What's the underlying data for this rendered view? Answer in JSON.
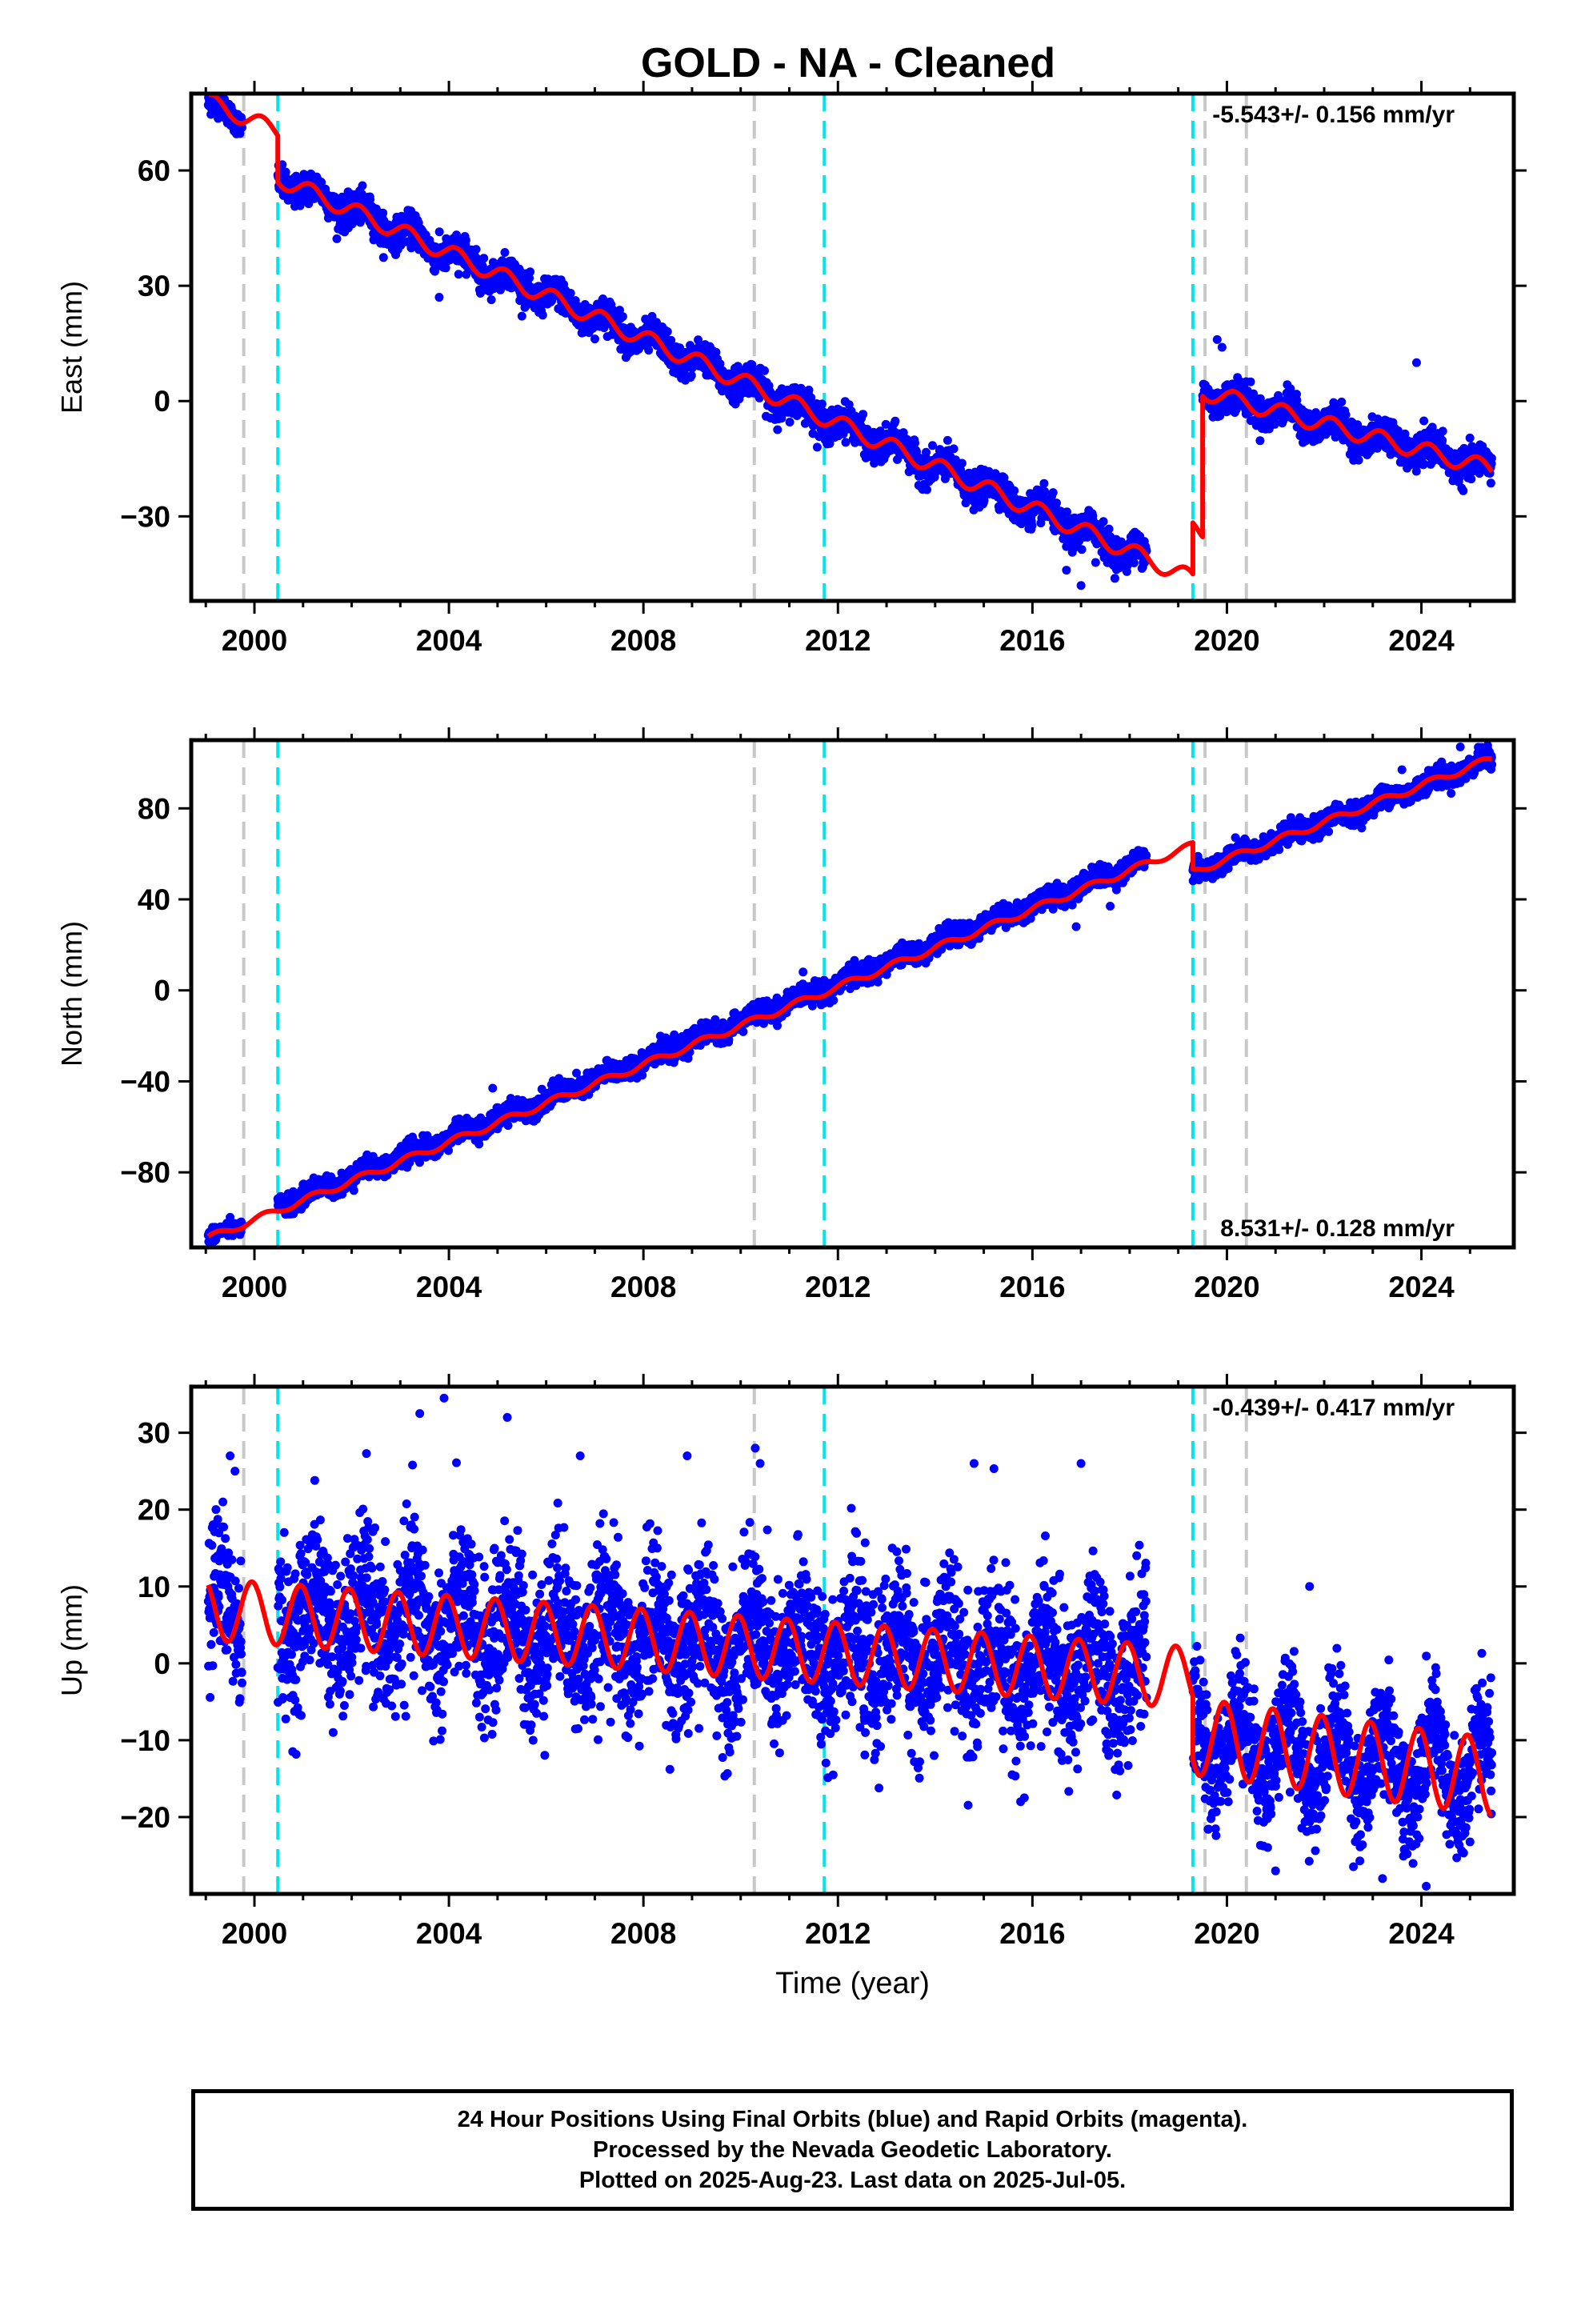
{
  "title": "GOLD  - NA - Cleaned",
  "colors": {
    "data": "#0000ff",
    "model": "#ff0000",
    "break_gray": "#c8c8c8",
    "break_cyan": "#00e5ee",
    "frame": "#000000"
  },
  "chart_data": [
    {
      "type": "scatter",
      "component": "east",
      "ylabel": "East (mm)",
      "xlim": [
        1998.7,
        2025.9
      ],
      "ylim": [
        -52,
        80
      ],
      "xticks": [
        2000,
        2004,
        2008,
        2012,
        2016,
        2020,
        2024
      ],
      "yticks": [
        -30,
        0,
        30,
        60
      ],
      "rate_label": "-5.543+/- 0.156 mm/yr",
      "rate_position": "top-right",
      "grid": false,
      "model": {
        "segments": [
          {
            "from": 1999.05,
            "to": 2000.48,
            "start": 78,
            "slope": -5.543,
            "amplitude": 2.2,
            "phase": 0.6
          },
          {
            "from": 2000.48,
            "to": 2019.3,
            "start": 58,
            "slope": -5.543,
            "amplitude": 2.2,
            "phase": 0.6
          },
          {
            "from": 2019.3,
            "to": 2019.5,
            "start": -33,
            "slope": -5.543,
            "amplitude": 2.2,
            "phase": 0.6
          },
          {
            "from": 2019.5,
            "to": 2025.45,
            "start": 2.5,
            "slope": -3.4,
            "amplitude": 2.2,
            "phase": 0.6
          }
        ]
      },
      "observations": {
        "segments": [
          {
            "from": 1999.05,
            "to": 1999.75,
            "start": 77,
            "slope": -5.543,
            "amplitude": 1.6,
            "noise": 1.5
          },
          {
            "from": 2000.48,
            "to": 2018.35,
            "start": 58,
            "slope": -5.543,
            "amplitude": 2.2,
            "noise": 2.0
          },
          {
            "from": 2019.5,
            "to": 2025.45,
            "start": 2.5,
            "slope": -3.4,
            "amplitude": 2.2,
            "noise": 2.0
          }
        ],
        "outliers": [
          {
            "x": 2019.8,
            "y": 16
          },
          {
            "x": 2019.9,
            "y": 14
          },
          {
            "x": 2023.9,
            "y": 10
          },
          {
            "x": 2017.0,
            "y": -48
          },
          {
            "x": 2016.7,
            "y": -44
          },
          {
            "x": 2003.8,
            "y": 27
          },
          {
            "x": 2004.2,
            "y": 33
          },
          {
            "x": 2017.3,
            "y": -42
          }
        ]
      },
      "breaks_gray": [
        1999.78,
        2010.28,
        2019.55,
        2020.4
      ],
      "breaks_cyan": [
        2000.48,
        2011.72,
        2019.3
      ]
    },
    {
      "type": "scatter",
      "component": "north",
      "ylabel": "North (mm)",
      "xlim": [
        1998.7,
        2025.9
      ],
      "ylim": [
        -113,
        110
      ],
      "xticks": [
        2000,
        2004,
        2008,
        2012,
        2016,
        2020,
        2024
      ],
      "yticks": [
        -80,
        -40,
        0,
        40,
        80
      ],
      "rate_label": "8.531+/- 0.128 mm/yr",
      "rate_position": "bottom-right",
      "grid": false,
      "model": {
        "segments": [
          {
            "from": 1999.05,
            "to": 2019.3,
            "start": -109,
            "slope": 8.531,
            "amplitude": 1.5,
            "phase": 0.3
          },
          {
            "from": 2019.3,
            "to": 2025.45,
            "start": 52,
            "slope": 8.1,
            "amplitude": 1.5,
            "phase": 0.3
          }
        ]
      },
      "observations": {
        "segments": [
          {
            "from": 1999.05,
            "to": 1999.75,
            "start": -109,
            "slope": 8.531,
            "amplitude": 1.2,
            "noise": 1.5
          },
          {
            "from": 2000.48,
            "to": 2018.35,
            "start": -95,
            "slope": 8.531,
            "amplitude": 1.5,
            "noise": 2.2
          },
          {
            "from": 2019.3,
            "to": 2025.45,
            "start": 52,
            "slope": 8.1,
            "amplitude": 1.5,
            "noise": 2.2
          }
        ],
        "outliers": [
          {
            "x": 2004.9,
            "y": -43
          },
          {
            "x": 2024.8,
            "y": 107
          },
          {
            "x": 2023.6,
            "y": 97
          },
          {
            "x": 2016.9,
            "y": 28
          },
          {
            "x": 2017.6,
            "y": 37
          }
        ]
      },
      "breaks_gray": [
        1999.78,
        2010.28,
        2019.55,
        2020.4
      ],
      "breaks_cyan": [
        2000.48,
        2011.72,
        2019.3
      ]
    },
    {
      "type": "scatter",
      "component": "up",
      "ylabel": "Up (mm)",
      "xlabel": "Time (year)",
      "xlim": [
        1998.7,
        2025.9
      ],
      "ylim": [
        -30,
        36
      ],
      "xticks": [
        2000,
        2004,
        2008,
        2012,
        2016,
        2020,
        2024
      ],
      "yticks": [
        -20,
        -10,
        0,
        10,
        20,
        30
      ],
      "rate_label": "-0.439+/- 0.417 mm/yr",
      "rate_position": "top-right",
      "grid": false,
      "model": {
        "segments": [
          {
            "from": 1999.05,
            "to": 2019.3,
            "start": 7.0,
            "slope": -0.439,
            "amplitude": 4.0,
            "phase": 1.9
          },
          {
            "from": 2019.3,
            "to": 2025.45,
            "start": -9.5,
            "slope": -0.85,
            "amplitude": 5.0,
            "phase": 1.9
          }
        ]
      },
      "observations": {
        "segments": [
          {
            "from": 1999.05,
            "to": 1999.75,
            "start": 7.0,
            "slope": -0.439,
            "amplitude": 4.0,
            "noise": 5.0
          },
          {
            "from": 2000.48,
            "to": 2018.35,
            "start": 6.5,
            "slope": -0.439,
            "amplitude": 4.0,
            "noise": 5.0
          },
          {
            "from": 2019.3,
            "to": 2025.45,
            "start": -9.5,
            "slope": -0.85,
            "amplitude": 5.0,
            "noise": 3.8
          }
        ],
        "outliers": [
          {
            "x": 1999.5,
            "y": 27
          },
          {
            "x": 1999.6,
            "y": 25
          },
          {
            "x": 2003.4,
            "y": 32.5
          },
          {
            "x": 2003.9,
            "y": 34.5
          },
          {
            "x": 2005.2,
            "y": 32
          },
          {
            "x": 2010.3,
            "y": 28
          },
          {
            "x": 2010.4,
            "y": 26
          },
          {
            "x": 2006.7,
            "y": 27
          },
          {
            "x": 2008.9,
            "y": 27
          },
          {
            "x": 2017.0,
            "y": 26
          },
          {
            "x": 2014.8,
            "y": 26
          },
          {
            "x": 2021.7,
            "y": 10
          },
          {
            "x": 2023.2,
            "y": -28
          },
          {
            "x": 2024.1,
            "y": -29
          },
          {
            "x": 2021.0,
            "y": -27
          }
        ]
      },
      "breaks_gray": [
        1999.78,
        2010.28,
        2019.55,
        2020.4
      ],
      "breaks_cyan": [
        2000.48,
        2011.72,
        2019.3
      ]
    }
  ],
  "footer": {
    "line1": "24 Hour Positions Using Final Orbits (blue) and Rapid Orbits (magenta).",
    "line2": "Processed by the Nevada Geodetic Laboratory.",
    "line3": "Plotted on 2025-Aug-23. Last data on 2025-Jul-05."
  }
}
